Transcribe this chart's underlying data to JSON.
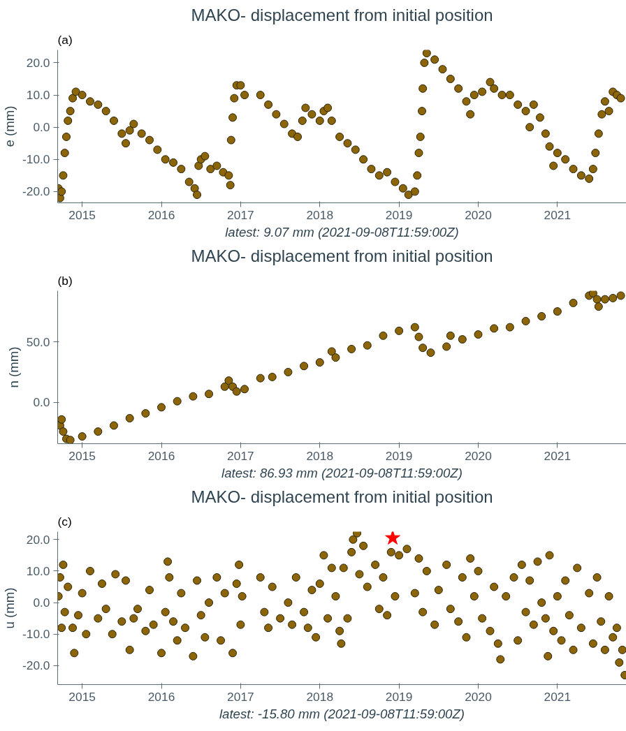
{
  "chart_data": [
    {
      "type": "scatter",
      "title": "MAKO- displacement from initial position",
      "xlabel": "latest: 9.07 mm (2021-09-08T11:59:00Z)",
      "ylabel": "e (mm)",
      "annotations": [
        "(a)"
      ],
      "marker": "circle",
      "xlim": [
        2014.69,
        2021.87
      ],
      "ylim": [
        -23.5,
        24
      ],
      "xticks": [
        2015,
        2016,
        2017,
        2018,
        2019,
        2020,
        2021
      ],
      "yticks": [
        {
          "value": -20,
          "label": "-20.0"
        },
        {
          "value": -10,
          "label": "-10.0"
        },
        {
          "value": 0,
          "label": "0.0"
        },
        {
          "value": 10,
          "label": "10.0"
        },
        {
          "value": 20,
          "label": "20.0"
        }
      ],
      "series": [
        {
          "color": "#8b6508",
          "x": [
            2014.7,
            2014.72,
            2014.74,
            2014.76,
            2014.78,
            2014.8,
            2014.82,
            2014.85,
            2014.88,
            2014.92,
            2015.0,
            2015.1,
            2015.2,
            2015.3,
            2015.4,
            2015.5,
            2015.55,
            2015.6,
            2015.65,
            2015.75,
            2015.85,
            2015.95,
            2016.05,
            2016.15,
            2016.25,
            2016.35,
            2016.42,
            2016.45,
            2016.47,
            2016.5,
            2016.55,
            2016.62,
            2016.7,
            2016.78,
            2016.85,
            2016.87,
            2016.88,
            2016.9,
            2016.92,
            2016.95,
            2017.0,
            2017.05,
            2017.25,
            2017.35,
            2017.45,
            2017.55,
            2017.65,
            2017.72,
            2017.78,
            2017.82,
            2017.9,
            2018.0,
            2018.05,
            2018.1,
            2018.15,
            2018.25,
            2018.35,
            2018.45,
            2018.55,
            2018.65,
            2018.75,
            2018.85,
            2018.95,
            2019.05,
            2019.12,
            2019.2,
            2019.23,
            2019.25,
            2019.27,
            2019.29,
            2019.3,
            2019.32,
            2019.35,
            2019.45,
            2019.55,
            2019.65,
            2019.75,
            2019.85,
            2019.9,
            2019.95,
            2020.05,
            2020.15,
            2020.2,
            2020.3,
            2020.4,
            2020.5,
            2020.6,
            2020.65,
            2020.7,
            2020.78,
            2020.85,
            2020.9,
            2020.95,
            2021.0,
            2021.1,
            2021.2,
            2021.3,
            2021.4,
            2021.45,
            2021.48,
            2021.52,
            2021.56,
            2021.6,
            2021.65,
            2021.7,
            2021.75,
            2021.8
          ],
          "values": [
            -19,
            -22,
            -20,
            -15,
            -8,
            -3,
            2,
            5,
            9,
            11,
            10,
            8,
            7,
            5,
            2,
            -2,
            -5,
            -1,
            1,
            -2,
            -4,
            -7,
            -10,
            -11,
            -13,
            -17,
            -19,
            -21,
            -12,
            -10,
            -9,
            -13,
            -12,
            -14,
            -15,
            -18,
            -4,
            3,
            9,
            13,
            13,
            10,
            10,
            7,
            4,
            1,
            -2,
            -3,
            2,
            6,
            4,
            2,
            5,
            6,
            2,
            -3,
            -5,
            -7,
            -10,
            -13,
            -15,
            -14,
            -17,
            -19,
            -21,
            -20,
            -15,
            -8,
            -3,
            5,
            12,
            20,
            23,
            21,
            18,
            15,
            12,
            8,
            4,
            10,
            11,
            14,
            12,
            10,
            10,
            7,
            5,
            0,
            7,
            3,
            -2,
            -6,
            -12,
            -8,
            -10,
            -13,
            -15,
            -16,
            -13,
            -8,
            -2,
            4,
            8,
            5,
            11,
            10,
            9
          ]
        }
      ]
    },
    {
      "type": "scatter",
      "title": "MAKO- displacement from initial position",
      "xlabel": "latest: 86.93 mm (2021-09-08T11:59:00Z)",
      "ylabel": "n (mm)",
      "annotations": [
        "(b)"
      ],
      "marker": "circle",
      "xlim": [
        2014.69,
        2021.87
      ],
      "ylim": [
        -34,
        92
      ],
      "xticks": [
        2015,
        2016,
        2017,
        2018,
        2019,
        2020,
        2021
      ],
      "yticks": [
        {
          "value": 0,
          "label": "0.0"
        },
        {
          "value": 50,
          "label": "50.0"
        }
      ],
      "series": [
        {
          "color": "#8b6508",
          "x": [
            2014.72,
            2014.74,
            2014.76,
            2014.8,
            2014.85,
            2015.0,
            2015.2,
            2015.4,
            2015.6,
            2015.8,
            2016.0,
            2016.2,
            2016.4,
            2016.6,
            2016.8,
            2016.85,
            2016.9,
            2016.95,
            2017.05,
            2017.25,
            2017.4,
            2017.6,
            2017.8,
            2018.0,
            2018.15,
            2018.2,
            2018.4,
            2018.6,
            2018.8,
            2019.0,
            2019.2,
            2019.25,
            2019.3,
            2019.4,
            2019.6,
            2019.65,
            2019.8,
            2020.0,
            2020.2,
            2020.4,
            2020.6,
            2020.8,
            2021.0,
            2021.2,
            2021.4,
            2021.45,
            2021.5,
            2021.52,
            2021.6,
            2021.7,
            2021.8
          ],
          "values": [
            -19,
            -14,
            -24,
            -30,
            -31,
            -28,
            -24,
            -19,
            -13,
            -9,
            -4,
            1,
            5,
            7,
            13,
            18,
            13,
            9,
            11,
            20,
            21,
            25,
            30,
            33,
            42,
            37,
            44,
            47,
            55,
            59,
            62,
            54,
            45,
            41,
            46,
            55,
            52,
            56,
            61,
            62,
            67,
            71,
            75,
            82,
            88,
            90,
            85,
            79,
            85,
            86,
            88
          ]
        }
      ]
    },
    {
      "type": "scatter",
      "title": "MAKO- displacement from initial position",
      "xlabel": "latest: -15.80 mm (2021-09-08T11:59:00Z)",
      "ylabel": "u (mm)",
      "annotations": [
        "(c)"
      ],
      "marker": "circle",
      "xlim": [
        2014.69,
        2021.87
      ],
      "ylim": [
        -26,
        22.5
      ],
      "xticks": [
        2015,
        2016,
        2017,
        2018,
        2019,
        2020,
        2021
      ],
      "yticks": [
        {
          "value": -20,
          "label": "-20.0"
        },
        {
          "value": -10,
          "label": "-10.0"
        },
        {
          "value": 0,
          "label": "0.0"
        },
        {
          "value": 10,
          "label": "10.0"
        },
        {
          "value": 20,
          "label": "20.0"
        }
      ],
      "series": [
        {
          "color": "#8b6508",
          "x": [
            2014.7,
            2014.72,
            2014.74,
            2014.76,
            2014.78,
            2014.82,
            2014.88,
            2014.9,
            2014.95,
            2015.0,
            2015.05,
            2015.1,
            2015.2,
            2015.25,
            2015.3,
            2015.38,
            2015.42,
            2015.5,
            2015.55,
            2015.6,
            2015.65,
            2015.7,
            2015.8,
            2015.85,
            2015.9,
            2016.0,
            2016.05,
            2016.08,
            2016.1,
            2016.15,
            2016.2,
            2016.25,
            2016.3,
            2016.4,
            2016.45,
            2016.5,
            2016.55,
            2016.6,
            2016.7,
            2016.75,
            2016.8,
            2016.9,
            2016.95,
            2016.98,
            2017.0,
            2017.02,
            2017.25,
            2017.3,
            2017.35,
            2017.4,
            2017.5,
            2017.6,
            2017.65,
            2017.7,
            2017.8,
            2017.85,
            2017.9,
            2017.95,
            2018.0,
            2018.05,
            2018.1,
            2018.15,
            2018.2,
            2018.25,
            2018.27,
            2018.3,
            2018.35,
            2018.4,
            2018.42,
            2018.47,
            2018.5,
            2018.55,
            2018.6,
            2018.7,
            2018.75,
            2018.8,
            2018.85,
            2018.9,
            2018.95,
            2019.0,
            2019.1,
            2019.2,
            2019.25,
            2019.3,
            2019.35,
            2019.45,
            2019.5,
            2019.6,
            2019.65,
            2019.75,
            2019.8,
            2019.85,
            2019.9,
            2019.95,
            2020.0,
            2020.05,
            2020.15,
            2020.2,
            2020.25,
            2020.28,
            2020.35,
            2020.45,
            2020.5,
            2020.55,
            2020.6,
            2020.65,
            2020.7,
            2020.75,
            2020.8,
            2020.85,
            2020.88,
            2020.9,
            2020.95,
            2021.0,
            2021.05,
            2021.1,
            2021.15,
            2021.2,
            2021.25,
            2021.3,
            2021.4,
            2021.45,
            2021.5,
            2021.55,
            2021.6,
            2021.65,
            2021.7,
            2021.75,
            2021.78,
            2021.82,
            2021.85
          ],
          "values": [
            2,
            8,
            -8,
            12,
            -3,
            5,
            -8,
            -16,
            -4,
            3,
            -10,
            10,
            -5,
            6,
            -2,
            -10,
            9,
            -6,
            7,
            -15,
            -5,
            -2,
            -9,
            4,
            -7,
            -16,
            -3,
            13,
            8,
            -6,
            -12,
            3,
            -8,
            -17,
            7,
            -4,
            -11,
            0,
            8,
            -12,
            3,
            -16,
            6,
            12,
            -7,
            2,
            8,
            -3,
            -8,
            5,
            -5,
            0,
            -7,
            8,
            -3,
            -8,
            4,
            -11,
            6,
            15,
            -5,
            11,
            2,
            -9,
            -13,
            11,
            -5,
            16,
            20,
            22,
            9,
            18,
            5,
            12,
            -2,
            8,
            -4,
            16,
            2,
            15,
            17,
            3,
            14,
            -3,
            10,
            -7,
            4,
            12,
            -2,
            -6,
            8,
            -11,
            14,
            2,
            10,
            -5,
            -9,
            5,
            -13,
            -18,
            2,
            8,
            -12,
            12,
            -3,
            7,
            -7,
            13,
            0,
            -5,
            -17,
            15,
            -9,
            2,
            -12,
            7,
            -4,
            -15,
            11,
            -8,
            3,
            -13,
            8,
            -6,
            -15,
            2,
            -11,
            -8,
            -19,
            -15,
            -23
          ]
        },
        {
          "color": "#ff0000",
          "marker": "star",
          "x": [
            2018.92
          ],
          "values": [
            20.5
          ]
        }
      ]
    }
  ]
}
